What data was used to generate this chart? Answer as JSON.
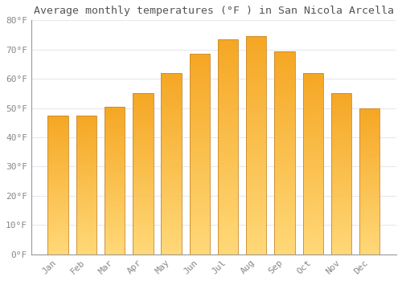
{
  "title": "Average monthly temperatures (°F ) in San Nicola Arcella",
  "months": [
    "Jan",
    "Feb",
    "Mar",
    "Apr",
    "May",
    "Jun",
    "Jul",
    "Aug",
    "Sep",
    "Oct",
    "Nov",
    "Dec"
  ],
  "values": [
    47.5,
    47.5,
    50.5,
    55.0,
    62.0,
    68.5,
    73.5,
    74.5,
    69.5,
    62.0,
    55.0,
    50.0
  ],
  "bar_color_top": "#F5A623",
  "bar_color_bottom": "#FFD878",
  "bar_border_color": "#C8882A",
  "ylim": [
    0,
    80
  ],
  "yticks": [
    0,
    10,
    20,
    30,
    40,
    50,
    60,
    70,
    80
  ],
  "ytick_labels": [
    "0°F",
    "10°F",
    "20°F",
    "30°F",
    "40°F",
    "50°F",
    "60°F",
    "70°F",
    "80°F"
  ],
  "background_color": "#FFFFFF",
  "grid_color": "#E8E8F0",
  "title_fontsize": 9.5,
  "tick_fontsize": 8,
  "font_family": "monospace",
  "tick_color": "#888888",
  "title_color": "#555555"
}
